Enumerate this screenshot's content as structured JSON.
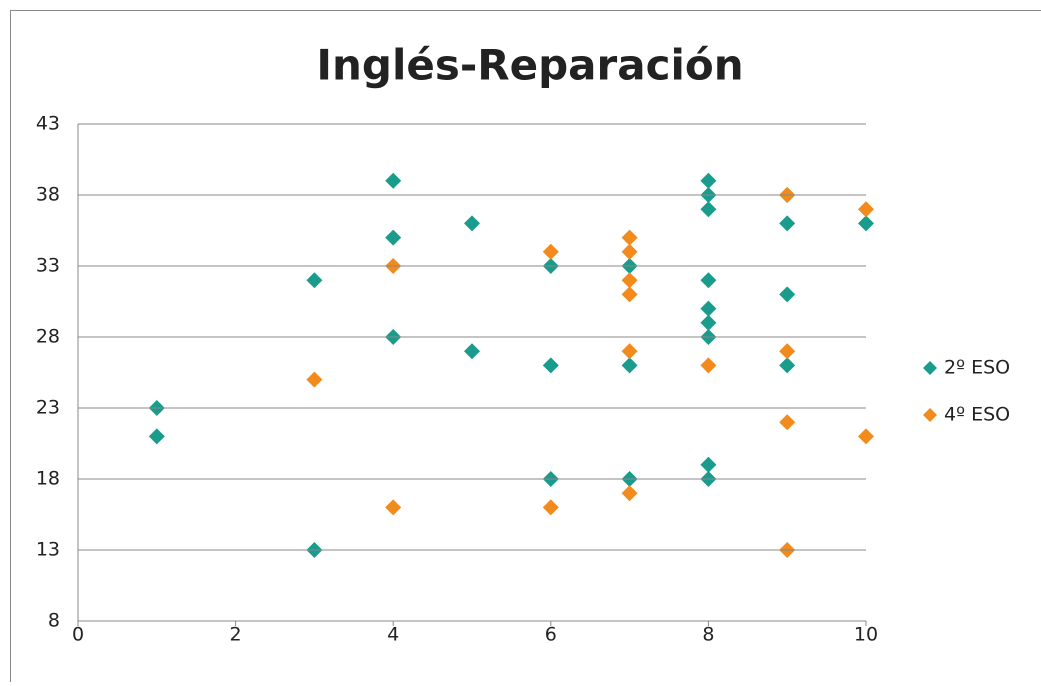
{
  "chart_data": {
    "type": "scatter",
    "title": "Inglés-Reparación",
    "xlim": [
      0,
      10
    ],
    "xticks": [
      0,
      2,
      4,
      6,
      8,
      10
    ],
    "ylim": [
      8,
      43
    ],
    "yticks": [
      8,
      13,
      18,
      23,
      28,
      33,
      38,
      43
    ],
    "grid": true,
    "legend": "right",
    "series": [
      {
        "name": "2º ESO",
        "color": "#1a9c8c",
        "x": [
          1,
          1,
          3,
          3,
          4,
          4,
          4,
          5,
          5,
          6,
          6,
          6,
          7,
          7,
          7,
          8,
          8,
          8,
          8,
          8,
          8,
          8,
          8,
          8,
          9,
          9,
          9,
          9,
          10
        ],
        "values": [
          23,
          21,
          32,
          13,
          39,
          35,
          28,
          36,
          27,
          33,
          26,
          18,
          33,
          26,
          18,
          39,
          38,
          37,
          32,
          30,
          29,
          28,
          19,
          18,
          38,
          36,
          31,
          26,
          36
        ]
      },
      {
        "name": "4º ESO",
        "color": "#f28a1c",
        "x": [
          3,
          4,
          4,
          6,
          6,
          7,
          7,
          7,
          7,
          7,
          7,
          8,
          9,
          9,
          9,
          9,
          10,
          10
        ],
        "values": [
          25,
          33,
          16,
          34,
          16,
          35,
          34,
          32,
          31,
          27,
          17,
          26,
          38,
          27,
          22,
          13,
          37,
          21
        ]
      }
    ]
  }
}
